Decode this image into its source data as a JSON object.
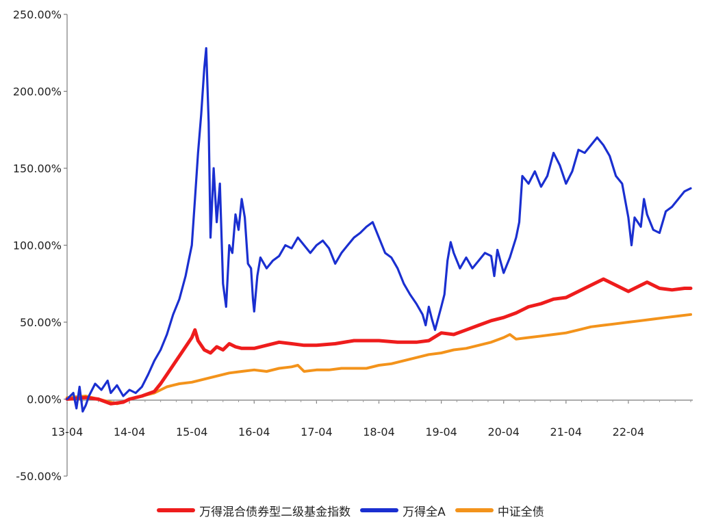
{
  "chart_data": {
    "type": "line",
    "title": "",
    "xlabel": "",
    "ylabel": "",
    "x_ticks": [
      "13-04",
      "14-04",
      "15-04",
      "16-04",
      "17-04",
      "18-04",
      "19-04",
      "20-04",
      "21-04",
      "22-04"
    ],
    "y_ticks": [
      "250.00%",
      "200.00%",
      "150.00%",
      "100.00%",
      "50.00%",
      "0.00%",
      "-50.00%"
    ],
    "ylim": [
      -50,
      250
    ],
    "xlim": [
      0,
      10
    ],
    "grid": false,
    "legend_position": "bottom",
    "series": [
      {
        "name": "万得混合债券型二级基金指数",
        "color": "#ee1c1c",
        "points": [
          [
            0,
            0
          ],
          [
            0.3,
            1
          ],
          [
            0.5,
            0
          ],
          [
            0.7,
            -3
          ],
          [
            0.9,
            -2
          ],
          [
            1.0,
            0
          ],
          [
            1.2,
            2
          ],
          [
            1.4,
            5
          ],
          [
            1.5,
            10
          ],
          [
            1.6,
            16
          ],
          [
            1.7,
            22
          ],
          [
            1.8,
            28
          ],
          [
            1.9,
            34
          ],
          [
            2.0,
            40
          ],
          [
            2.05,
            45
          ],
          [
            2.1,
            38
          ],
          [
            2.2,
            32
          ],
          [
            2.3,
            30
          ],
          [
            2.4,
            34
          ],
          [
            2.5,
            32
          ],
          [
            2.6,
            36
          ],
          [
            2.7,
            34
          ],
          [
            2.8,
            33
          ],
          [
            3.0,
            33
          ],
          [
            3.2,
            35
          ],
          [
            3.4,
            37
          ],
          [
            3.6,
            36
          ],
          [
            3.8,
            35
          ],
          [
            4.0,
            35
          ],
          [
            4.3,
            36
          ],
          [
            4.6,
            38
          ],
          [
            5.0,
            38
          ],
          [
            5.3,
            37
          ],
          [
            5.6,
            37
          ],
          [
            5.8,
            38
          ],
          [
            6.0,
            43
          ],
          [
            6.2,
            42
          ],
          [
            6.4,
            45
          ],
          [
            6.6,
            48
          ],
          [
            6.8,
            51
          ],
          [
            7.0,
            53
          ],
          [
            7.2,
            56
          ],
          [
            7.4,
            60
          ],
          [
            7.6,
            62
          ],
          [
            7.8,
            65
          ],
          [
            8.0,
            66
          ],
          [
            8.2,
            70
          ],
          [
            8.4,
            74
          ],
          [
            8.6,
            78
          ],
          [
            8.7,
            76
          ],
          [
            8.9,
            72
          ],
          [
            9.0,
            70
          ],
          [
            9.2,
            74
          ],
          [
            9.3,
            76
          ],
          [
            9.5,
            72
          ],
          [
            9.7,
            71
          ],
          [
            9.9,
            72
          ],
          [
            10.0,
            72
          ]
        ]
      },
      {
        "name": "万得全A",
        "color": "#1a2fd0",
        "points": [
          [
            0,
            0
          ],
          [
            0.1,
            4
          ],
          [
            0.15,
            -6
          ],
          [
            0.2,
            8
          ],
          [
            0.25,
            -8
          ],
          [
            0.3,
            -4
          ],
          [
            0.35,
            2
          ],
          [
            0.45,
            10
          ],
          [
            0.55,
            6
          ],
          [
            0.65,
            12
          ],
          [
            0.7,
            4
          ],
          [
            0.8,
            9
          ],
          [
            0.9,
            2
          ],
          [
            1.0,
            6
          ],
          [
            1.1,
            4
          ],
          [
            1.2,
            8
          ],
          [
            1.3,
            16
          ],
          [
            1.4,
            25
          ],
          [
            1.5,
            32
          ],
          [
            1.6,
            42
          ],
          [
            1.7,
            55
          ],
          [
            1.8,
            65
          ],
          [
            1.9,
            80
          ],
          [
            1.95,
            90
          ],
          [
            2.0,
            100
          ],
          [
            2.05,
            130
          ],
          [
            2.1,
            160
          ],
          [
            2.15,
            185
          ],
          [
            2.2,
            215
          ],
          [
            2.23,
            228
          ],
          [
            2.27,
            180
          ],
          [
            2.3,
            105
          ],
          [
            2.35,
            150
          ],
          [
            2.4,
            115
          ],
          [
            2.45,
            140
          ],
          [
            2.5,
            75
          ],
          [
            2.55,
            60
          ],
          [
            2.6,
            100
          ],
          [
            2.65,
            95
          ],
          [
            2.7,
            120
          ],
          [
            2.75,
            110
          ],
          [
            2.8,
            130
          ],
          [
            2.85,
            118
          ],
          [
            2.9,
            88
          ],
          [
            2.95,
            85
          ],
          [
            2.98,
            65
          ],
          [
            3.0,
            57
          ],
          [
            3.05,
            80
          ],
          [
            3.1,
            92
          ],
          [
            3.2,
            85
          ],
          [
            3.3,
            90
          ],
          [
            3.4,
            93
          ],
          [
            3.5,
            100
          ],
          [
            3.6,
            98
          ],
          [
            3.7,
            105
          ],
          [
            3.8,
            100
          ],
          [
            3.9,
            95
          ],
          [
            4.0,
            100
          ],
          [
            4.1,
            103
          ],
          [
            4.2,
            98
          ],
          [
            4.3,
            88
          ],
          [
            4.4,
            95
          ],
          [
            4.5,
            100
          ],
          [
            4.6,
            105
          ],
          [
            4.7,
            108
          ],
          [
            4.8,
            112
          ],
          [
            4.9,
            115
          ],
          [
            5.0,
            105
          ],
          [
            5.1,
            95
          ],
          [
            5.2,
            92
          ],
          [
            5.3,
            85
          ],
          [
            5.4,
            75
          ],
          [
            5.5,
            68
          ],
          [
            5.6,
            62
          ],
          [
            5.7,
            55
          ],
          [
            5.75,
            48
          ],
          [
            5.8,
            60
          ],
          [
            5.85,
            52
          ],
          [
            5.9,
            45
          ],
          [
            6.0,
            60
          ],
          [
            6.05,
            68
          ],
          [
            6.1,
            90
          ],
          [
            6.15,
            102
          ],
          [
            6.2,
            95
          ],
          [
            6.3,
            85
          ],
          [
            6.4,
            92
          ],
          [
            6.5,
            85
          ],
          [
            6.6,
            90
          ],
          [
            6.7,
            95
          ],
          [
            6.8,
            93
          ],
          [
            6.85,
            80
          ],
          [
            6.9,
            97
          ],
          [
            7.0,
            82
          ],
          [
            7.1,
            92
          ],
          [
            7.2,
            105
          ],
          [
            7.25,
            115
          ],
          [
            7.3,
            145
          ],
          [
            7.4,
            140
          ],
          [
            7.5,
            148
          ],
          [
            7.6,
            138
          ],
          [
            7.7,
            145
          ],
          [
            7.8,
            160
          ],
          [
            7.9,
            152
          ],
          [
            8.0,
            140
          ],
          [
            8.1,
            148
          ],
          [
            8.2,
            162
          ],
          [
            8.3,
            160
          ],
          [
            8.4,
            165
          ],
          [
            8.5,
            170
          ],
          [
            8.6,
            165
          ],
          [
            8.7,
            158
          ],
          [
            8.8,
            145
          ],
          [
            8.9,
            140
          ],
          [
            9.0,
            118
          ],
          [
            9.05,
            100
          ],
          [
            9.1,
            118
          ],
          [
            9.2,
            112
          ],
          [
            9.25,
            130
          ],
          [
            9.3,
            120
          ],
          [
            9.4,
            110
          ],
          [
            9.5,
            108
          ],
          [
            9.6,
            122
          ],
          [
            9.7,
            125
          ],
          [
            9.8,
            130
          ],
          [
            9.9,
            135
          ],
          [
            10.0,
            137
          ]
        ]
      },
      {
        "name": "中证全债",
        "color": "#f3931b",
        "points": [
          [
            0,
            1
          ],
          [
            0.3,
            2
          ],
          [
            0.5,
            0
          ],
          [
            0.7,
            -2
          ],
          [
            0.8,
            -3
          ],
          [
            0.9,
            -2
          ],
          [
            1.0,
            0
          ],
          [
            1.2,
            2
          ],
          [
            1.4,
            4
          ],
          [
            1.6,
            8
          ],
          [
            1.8,
            10
          ],
          [
            2.0,
            11
          ],
          [
            2.2,
            13
          ],
          [
            2.4,
            15
          ],
          [
            2.6,
            17
          ],
          [
            2.8,
            18
          ],
          [
            3.0,
            19
          ],
          [
            3.2,
            18
          ],
          [
            3.4,
            20
          ],
          [
            3.6,
            21
          ],
          [
            3.7,
            22
          ],
          [
            3.8,
            18
          ],
          [
            4.0,
            19
          ],
          [
            4.2,
            19
          ],
          [
            4.4,
            20
          ],
          [
            4.6,
            20
          ],
          [
            4.8,
            20
          ],
          [
            5.0,
            22
          ],
          [
            5.2,
            23
          ],
          [
            5.4,
            25
          ],
          [
            5.6,
            27
          ],
          [
            5.8,
            29
          ],
          [
            6.0,
            30
          ],
          [
            6.2,
            32
          ],
          [
            6.4,
            33
          ],
          [
            6.6,
            35
          ],
          [
            6.8,
            37
          ],
          [
            7.0,
            40
          ],
          [
            7.1,
            42
          ],
          [
            7.2,
            39
          ],
          [
            7.4,
            40
          ],
          [
            7.6,
            41
          ],
          [
            7.8,
            42
          ],
          [
            8.0,
            43
          ],
          [
            8.2,
            45
          ],
          [
            8.4,
            47
          ],
          [
            8.6,
            48
          ],
          [
            8.8,
            49
          ],
          [
            9.0,
            50
          ],
          [
            9.2,
            51
          ],
          [
            9.4,
            52
          ],
          [
            9.6,
            53
          ],
          [
            9.8,
            54
          ],
          [
            10.0,
            55
          ]
        ]
      }
    ]
  }
}
